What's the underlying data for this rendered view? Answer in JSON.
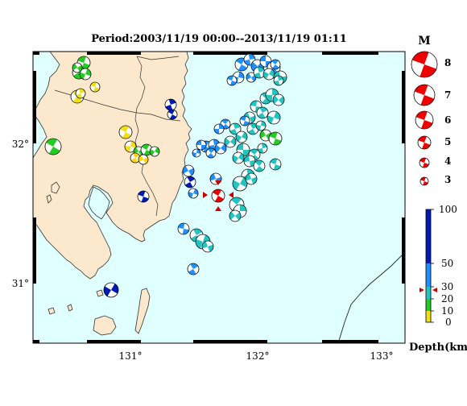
{
  "title": "Period:2003/11/19 00:00--2013/11/19 01:11",
  "magnitude_legend": {
    "heading": "M",
    "labels": [
      "8",
      "7",
      "6",
      "5",
      "4",
      "3"
    ]
  },
  "map": {
    "lat_ticks": [
      "32°",
      "31°"
    ],
    "lon_ticks": [
      "131°",
      "132°",
      "133°"
    ]
  },
  "depth_colorbar": {
    "unit_label": "Depth(km)",
    "tick_labels": [
      "100",
      "50",
      "30",
      "20",
      "10",
      "0"
    ],
    "marker_depth": 27
  },
  "colors": {
    "ocean": "#e0ffff",
    "land": "#fce8cc",
    "mainshock": "#ee0000",
    "depth_0_10": "#f0e010",
    "depth_10_20": "#ffd400",
    "depth_20_30": "#22cc22",
    "depth_30_50": "#22c4c0",
    "depth_50_100": "#1e90ff",
    "depth_deep": "#001ab5"
  }
}
